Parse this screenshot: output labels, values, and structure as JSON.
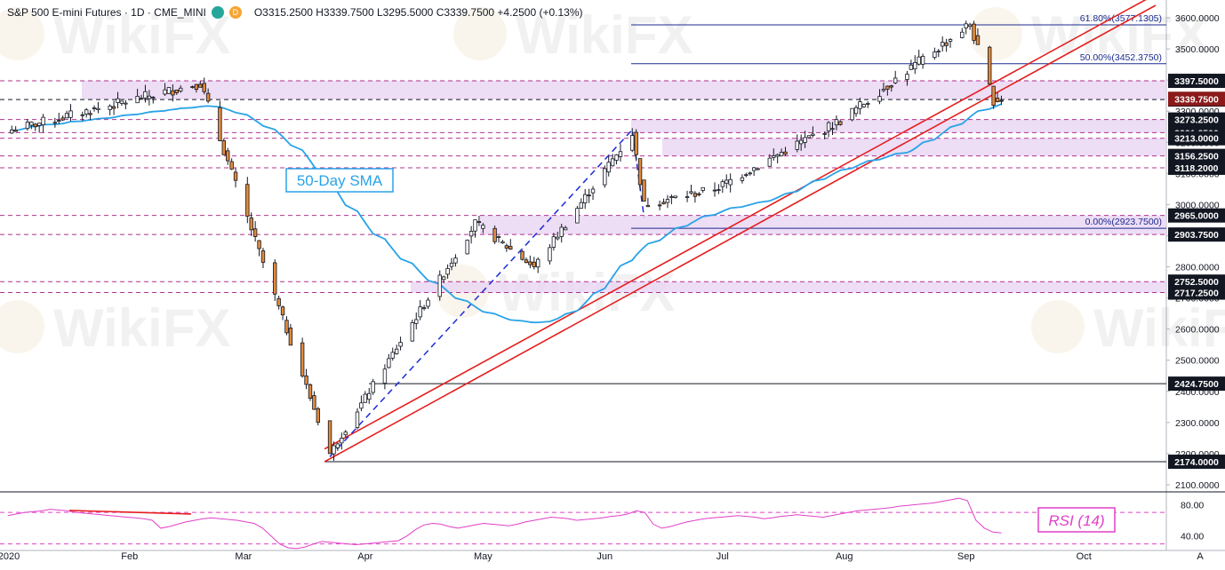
{
  "header": {
    "symbol_line": "S&P 500 E-mini Futures · 1D · CME_MINI",
    "badge_green": "",
    "badge_orange": "D",
    "ohlc": "O3315.2500 H3339.7500 L3295.5000 C3339.7500 +4.2500 (+0.13%)"
  },
  "watermark": "WikiFX",
  "annotations": {
    "sma_label": "50-Day SMA",
    "rsi_label": "RSI (14)"
  },
  "colors": {
    "up_candle": "#ffffff",
    "down_candle": "#e08a3c",
    "sma": "#29a3e8",
    "trend": "#e51e1e",
    "zone_fill": "#e8d4f3",
    "zone_line": "#b0308f",
    "rsi": "#e040c8",
    "label_bg": "#131722",
    "price_bg": "#8b1a1a"
  },
  "chart_data": {
    "type": "candlestick",
    "title": "S&P 500 E-mini Futures · 1D · CME_MINI",
    "x_axis_labels": [
      "2020",
      "Feb",
      "Mar",
      "Apr",
      "May",
      "Jun",
      "Jul",
      "Aug",
      "Sep",
      "Oct"
    ],
    "y_axis_ticks": [
      2100,
      2200,
      2300,
      2400,
      2500,
      2600,
      2700,
      2800,
      2900,
      3000,
      3100,
      3200,
      3300,
      3400,
      3500,
      3600
    ],
    "ylim": [
      2080,
      3640
    ],
    "current_price": 3339.75,
    "price_levels": [
      3397.5,
      3337.5,
      3273.25,
      3231.25,
      3213.0,
      3156.25,
      3118.2,
      2965.0,
      2903.75,
      2752.5,
      2717.25,
      2424.75,
      2174.0
    ],
    "fibonacci": [
      {
        "label": "61.80%(3577.1305)",
        "value": 3577.1305
      },
      {
        "label": "50.00%(3452.3750)",
        "value": 3452.375
      },
      {
        "label": "0.00%(2923.7500)",
        "value": 2923.75
      }
    ],
    "zones": [
      [
        3337.5,
        3397.5
      ],
      [
        3231.25,
        3273.25
      ],
      [
        3156.25,
        3213.0
      ],
      [
        2903.75,
        2965.0
      ],
      [
        2717.25,
        2752.5
      ]
    ],
    "key_points": [
      {
        "date": "2020-01-02",
        "close": 3240
      },
      {
        "date": "2020-02-19",
        "close": 3390
      },
      {
        "date": "2020-03-23",
        "close": 2200
      },
      {
        "date": "2020-04-29",
        "close": 2940
      },
      {
        "date": "2020-05-14",
        "close": 2800
      },
      {
        "date": "2020-06-08",
        "close": 3230
      },
      {
        "date": "2020-06-11",
        "close": 3000
      },
      {
        "date": "2020-06-29",
        "close": 3050
      },
      {
        "date": "2020-07-31",
        "close": 3270
      },
      {
        "date": "2020-09-02",
        "close": 3580
      },
      {
        "date": "2020-09-08",
        "close": 3335
      },
      {
        "date": "2020-09-10",
        "close": 3339.75
      }
    ],
    "rsi": {
      "ylim": [
        25,
        95
      ],
      "ticks": [
        40,
        80
      ],
      "levels": [
        70,
        30
      ],
      "values": [
        66,
        68,
        70,
        71,
        72,
        74,
        73,
        72,
        70,
        69,
        68,
        67,
        66,
        65,
        64,
        63,
        62,
        60,
        50,
        52,
        55,
        58,
        60,
        62,
        63,
        62,
        61,
        60,
        58,
        56,
        50,
        40,
        30,
        25,
        24,
        26,
        30,
        33,
        32,
        31,
        30,
        29,
        30,
        31,
        32,
        33,
        34,
        40,
        48,
        54,
        56,
        55,
        52,
        50,
        52,
        54,
        56,
        55,
        54,
        53,
        55,
        58,
        60,
        62,
        64,
        63,
        62,
        60,
        61,
        62,
        63,
        65,
        66,
        68,
        72,
        70,
        55,
        50,
        52,
        55,
        58,
        60,
        62,
        63,
        64,
        65,
        66,
        65,
        64,
        62,
        63,
        65,
        66,
        67,
        66,
        65,
        64,
        66,
        68,
        70,
        72,
        73,
        74,
        75,
        76,
        78,
        79,
        80,
        81,
        82,
        84,
        86,
        88,
        85,
        60,
        50,
        45,
        44
      ]
    }
  }
}
